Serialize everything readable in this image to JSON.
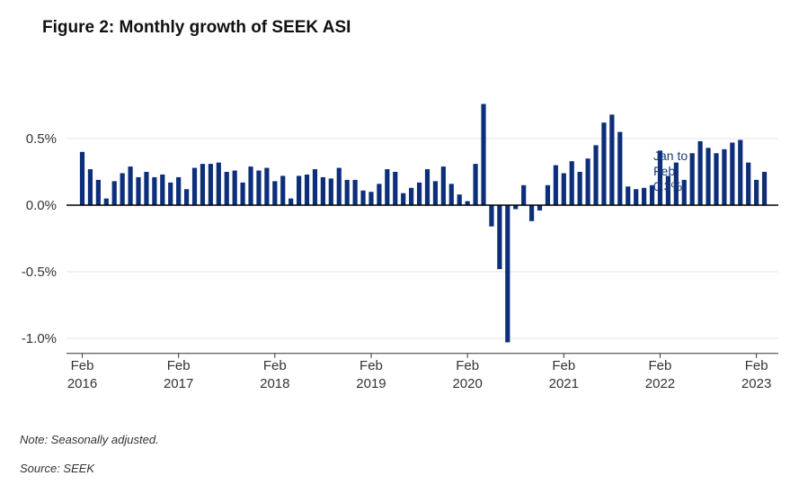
{
  "title": "Figure 2: Monthly growth of SEEK ASI",
  "note": "Note: Seasonally adjusted.",
  "source": "Source: SEEK",
  "colors": {
    "bar": "#0d2f7a",
    "grid": "#e6e6e6",
    "zero": "#000000",
    "annotation": "#1a3a7a"
  },
  "chart_data": {
    "type": "bar",
    "title": "Figure 2: Monthly growth of SEEK ASI",
    "xlabel": "",
    "ylabel": "",
    "ylim": [
      -1.1,
      0.8
    ],
    "y_ticks": [
      {
        "value": 0.5,
        "label": "0.5%"
      },
      {
        "value": 0.0,
        "label": "0.0%"
      },
      {
        "value": -0.5,
        "label": "-0.5%"
      },
      {
        "value": -1.0,
        "label": "-1.0%"
      }
    ],
    "x_ticks": [
      {
        "index": 0,
        "month": "Feb",
        "year": "2016"
      },
      {
        "index": 12,
        "month": "Feb",
        "year": "2017"
      },
      {
        "index": 24,
        "month": "Feb",
        "year": "2018"
      },
      {
        "index": 36,
        "month": "Feb",
        "year": "2019"
      },
      {
        "index": 48,
        "month": "Feb",
        "year": "2020"
      },
      {
        "index": 60,
        "month": "Feb",
        "year": "2021"
      },
      {
        "index": 72,
        "month": "Feb",
        "year": "2022"
      },
      {
        "index": 84,
        "month": "Feb",
        "year": "2023"
      }
    ],
    "x_range_months": [
      0,
      105
    ],
    "start_month": "2016-02",
    "values": [
      0.4,
      0.27,
      0.19,
      0.05,
      0.18,
      0.24,
      0.29,
      0.21,
      0.25,
      0.21,
      0.23,
      0.17,
      0.21,
      0.12,
      0.28,
      0.31,
      0.31,
      0.32,
      0.25,
      0.26,
      0.17,
      0.29,
      0.26,
      0.28,
      0.18,
      0.22,
      0.05,
      0.22,
      0.23,
      0.27,
      0.21,
      0.2,
      0.28,
      0.19,
      0.19,
      0.11,
      0.1,
      0.16,
      0.27,
      0.25,
      0.09,
      0.13,
      0.17,
      0.27,
      0.18,
      0.29,
      0.16,
      0.08,
      0.03,
      0.31,
      0.76,
      -0.16,
      -0.48,
      -1.03,
      -0.03,
      0.15,
      -0.12,
      -0.04,
      0.15,
      0.3,
      0.24,
      0.33,
      0.25,
      0.35,
      0.45,
      0.62,
      0.68,
      0.55,
      0.14,
      0.12,
      0.13,
      0.15,
      0.41,
      0.22,
      0.32,
      0.19,
      0.39,
      0.48,
      0.43,
      0.39,
      0.42,
      0.47,
      0.49,
      0.32,
      0.19,
      0.25
    ],
    "annotation": {
      "lines": [
        "Jan to",
        "Feb",
        "0.3%"
      ]
    }
  }
}
